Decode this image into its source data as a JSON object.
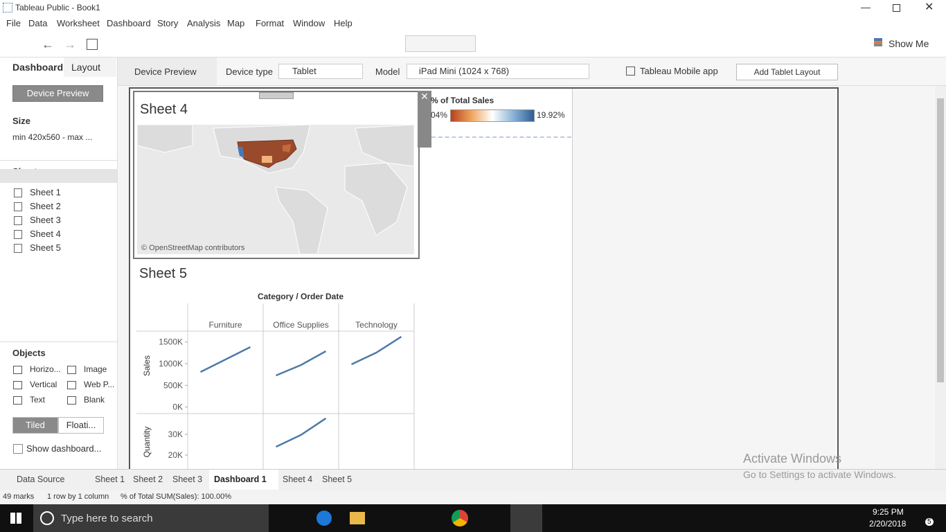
{
  "window": {
    "title": "Tableau Public - Book1"
  },
  "menu": [
    "File",
    "Data",
    "Worksheet",
    "Dashboard",
    "Story",
    "Analysis",
    "Map",
    "Format",
    "Window",
    "Help"
  ],
  "toolbar": {
    "show_me": "Show Me"
  },
  "left_panel": {
    "tabs": [
      "Dashboard",
      "Layout"
    ],
    "device_preview": "Device Preview",
    "size": {
      "heading": "Size",
      "value": "min 420x560 - max ..."
    },
    "sheets": {
      "heading": "Sheets",
      "items": [
        "Sheet 1",
        "Sheet 2",
        "Sheet 3",
        "Sheet 4",
        "Sheet 5"
      ]
    },
    "objects": {
      "heading": "Objects",
      "items": [
        "Horizo...",
        "Image",
        "Vertical",
        "Web P...",
        "Text",
        "Blank"
      ]
    },
    "tiled": "Tiled",
    "floating": "Floati...",
    "show_dashboard": "Show dashboard..."
  },
  "device_bar": {
    "label": "Device Preview",
    "device_type_label": "Device type",
    "device_type": "Tablet",
    "model_label": "Model",
    "model": "iPad Mini (1024 x 768)",
    "mobile_app": "Tableau Mobile app",
    "add_layout": "Add Tablet Layout"
  },
  "sheet4": {
    "title": "Sheet 4",
    "attribution": "© OpenStreetMap contributors"
  },
  "legend": {
    "title": "% of Total Sales",
    "min": "04%",
    "max": "19.92%"
  },
  "sheet5": {
    "title": "Sheet 5",
    "header": "Category / Order Date",
    "categories": [
      "Furniture",
      "Office Supplies",
      "Technology"
    ],
    "sales_label": "Sales",
    "sales_ylim": [
      -150000,
      1750000
    ],
    "sales_yticks": [
      {
        "value": 0,
        "label": "0K"
      },
      {
        "value": 500000,
        "label": "500K"
      },
      {
        "value": 1000000,
        "label": "1000K"
      },
      {
        "value": 1500000,
        "label": "1500K"
      }
    ],
    "sales_values": [
      [
        808000,
        1095000,
        1383000
      ],
      [
        728000,
        968000,
        1287000
      ],
      [
        984000,
        1255000,
        1622000
      ]
    ],
    "quantity_label": "Quantity",
    "quantity_ylim": [
      0,
      40000
    ],
    "quantity_yticks": [
      {
        "value": 20000,
        "label": "20K"
      },
      {
        "value": 30000,
        "label": "30K"
      }
    ],
    "quantity_values": [
      [
        null,
        null,
        null
      ],
      [
        24000,
        29700,
        37700
      ],
      [
        null,
        null,
        null
      ]
    ]
  },
  "bottom_tabs": [
    "Data Source",
    "Sheet 1",
    "Sheet 2",
    "Sheet 3",
    "Dashboard 1",
    "Sheet 4",
    "Sheet 5"
  ],
  "status": [
    "49 marks",
    "1 row by 1 column",
    "% of Total SUM(Sales): 100.00%"
  ],
  "watermark": {
    "title": "Activate Windows",
    "subtitle": "Go to Settings to activate Windows."
  },
  "taskbar": {
    "search": "Type here to search",
    "time": "9:25 PM",
    "date": "2/20/2018",
    "notifications": "5"
  }
}
